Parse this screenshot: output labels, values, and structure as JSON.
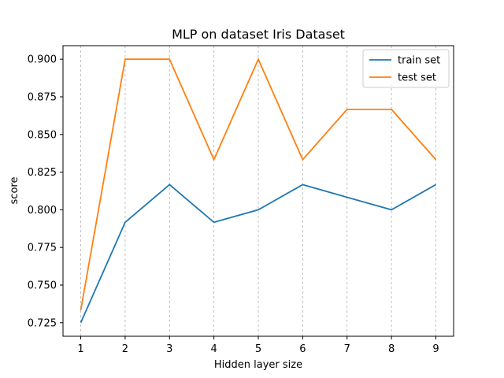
{
  "chart_data": {
    "type": "line",
    "title": "MLP on dataset Iris Dataset",
    "xlabel": "Hidden layer size",
    "ylabel": "score",
    "x": [
      1,
      2,
      3,
      4,
      5,
      6,
      7,
      8,
      9
    ],
    "series": [
      {
        "name": "train set",
        "color": "#1f77b4",
        "values": [
          0.725,
          0.7917,
          0.8167,
          0.7917,
          0.8,
          0.8167,
          0.8083,
          0.8,
          0.8167
        ]
      },
      {
        "name": "test set",
        "color": "#ff7f0e",
        "values": [
          0.7333,
          0.9,
          0.9,
          0.8333,
          0.9,
          0.8333,
          0.8667,
          0.8667,
          0.8333
        ]
      }
    ],
    "xticks": [
      "1",
      "2",
      "3",
      "4",
      "5",
      "6",
      "7",
      "8",
      "9"
    ],
    "yticks": [
      "0.725",
      "0.750",
      "0.775",
      "0.800",
      "0.825",
      "0.850",
      "0.875",
      "0.900"
    ],
    "ytick_values": [
      0.725,
      0.75,
      0.775,
      0.8,
      0.825,
      0.85,
      0.875,
      0.9
    ],
    "xlim": [
      0.6,
      9.4
    ],
    "ylim": [
      0.716,
      0.909
    ],
    "grid": "x-axis dashed",
    "legend_position": "top-right"
  }
}
